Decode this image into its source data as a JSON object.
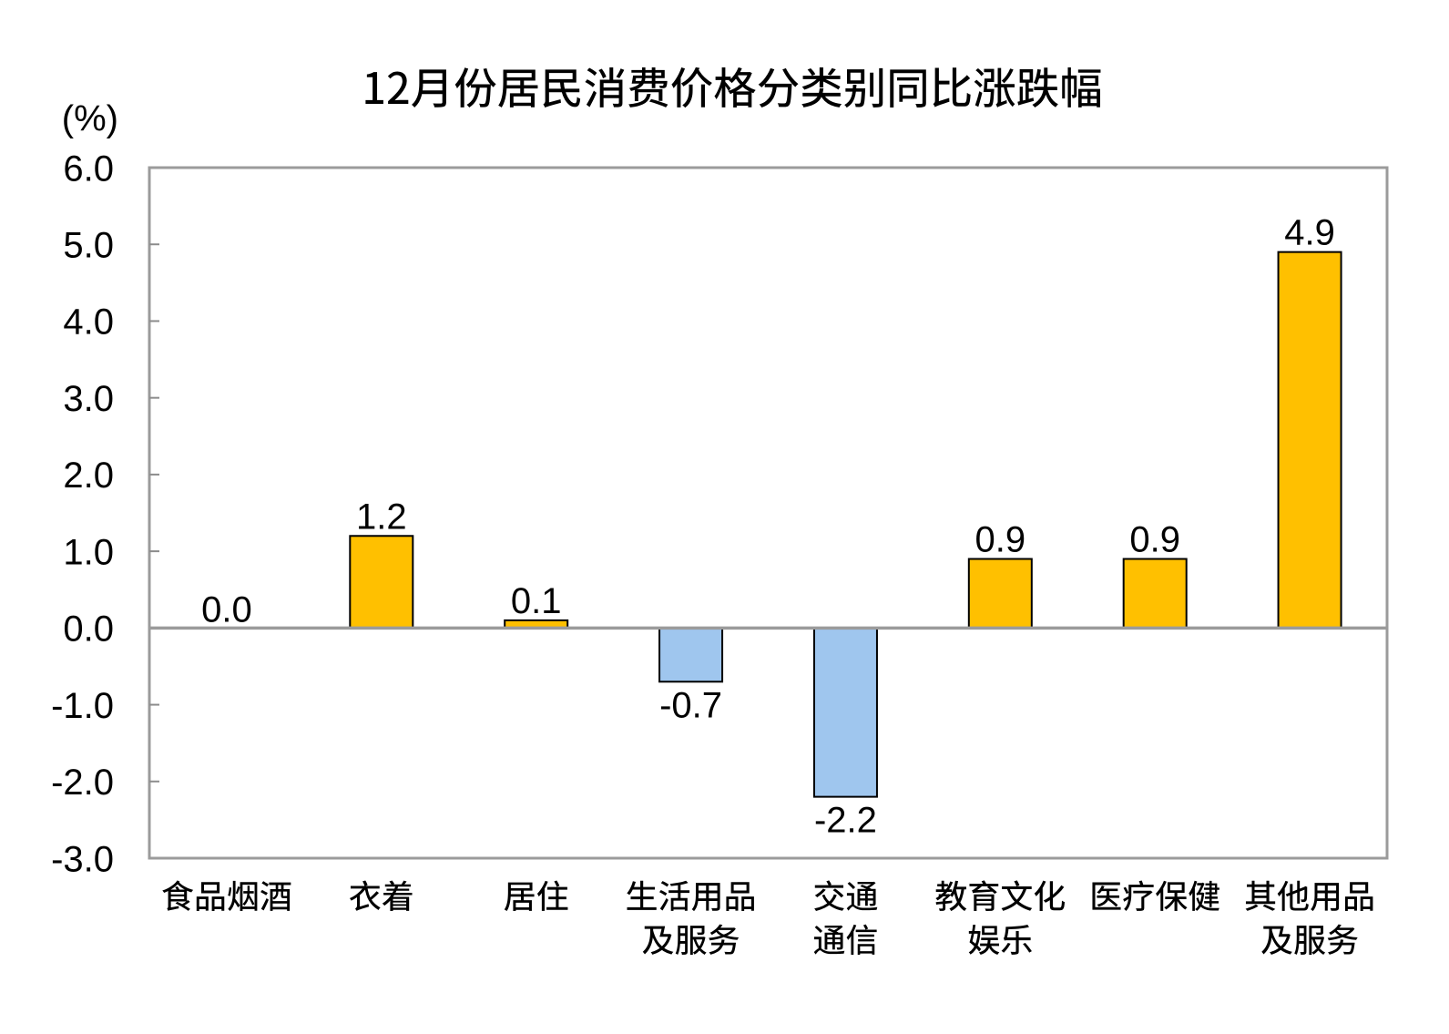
{
  "chart_data": {
    "type": "bar",
    "title": "12月份居民消费价格分类别同比涨跌幅",
    "unit_label": "(%)",
    "categories": [
      "食品烟酒",
      "衣着",
      "居住",
      "生活用品及服务",
      "交通通信",
      "教育文化娱乐",
      "医疗保健",
      "其他用品及服务"
    ],
    "category_lines": [
      [
        "食品烟酒"
      ],
      [
        "衣着"
      ],
      [
        "居住"
      ],
      [
        "生活用品",
        "及服务"
      ],
      [
        "交通",
        "通信"
      ],
      [
        "教育文化",
        "娱乐"
      ],
      [
        "医疗保健"
      ],
      [
        "其他用品",
        "及服务"
      ]
    ],
    "values": [
      0.0,
      1.2,
      0.1,
      -0.7,
      -2.2,
      0.9,
      0.9,
      4.9
    ],
    "value_labels": [
      "0.0",
      "1.2",
      "0.1",
      "-0.7",
      "-2.2",
      "0.9",
      "0.9",
      "4.9"
    ],
    "ylim": [
      -3.0,
      6.0
    ],
    "ytick_step": 1.0,
    "yticks": [
      "6.0",
      "5.0",
      "4.0",
      "3.0",
      "2.0",
      "1.0",
      "0.0",
      "-1.0",
      "-2.0",
      "-3.0"
    ],
    "grid": false,
    "legend": "none",
    "colors": {
      "positive_bar": "#FFC000",
      "negative_bar": "#9FC6EE",
      "bar_border": "#000000",
      "axis_line": "#9B9B9B",
      "tick_mark": "#8C8C8C",
      "text": "#000000",
      "background": "#FFFFFF"
    }
  }
}
